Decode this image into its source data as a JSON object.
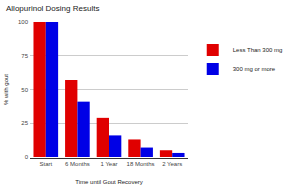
{
  "chart_data": {
    "type": "bar",
    "title": "Allopurinol Dosing Results",
    "x_label": "Time until Gout Recovery",
    "y_label": "% with gout",
    "categories": [
      "Start",
      "6 Months",
      "1 Year",
      "18 Months",
      "2 Years"
    ],
    "series": [
      {
        "name": "Less Than 300 mg",
        "color": "#e00000",
        "values": [
          100,
          57,
          29,
          13,
          5
        ]
      },
      {
        "name": "300 mg or more",
        "color": "#0000e6",
        "values": [
          100,
          41,
          16,
          7,
          3
        ]
      }
    ],
    "ylim": [
      0,
      100
    ],
    "yticks": [
      0,
      25,
      50,
      75,
      100
    ],
    "grid": true,
    "legend": "right"
  }
}
